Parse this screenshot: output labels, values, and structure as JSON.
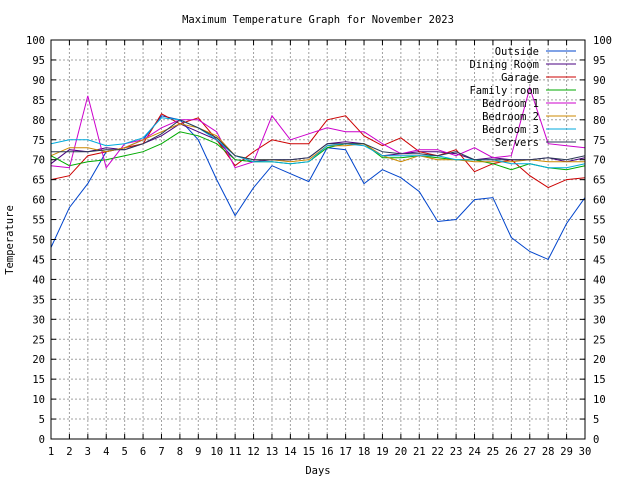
{
  "chart_data": {
    "type": "line",
    "title": "Maximum Temperature Graph for November 2023",
    "xlabel": "Days",
    "ylabel": "Temperature",
    "x": [
      1,
      2,
      3,
      4,
      5,
      6,
      7,
      8,
      9,
      10,
      11,
      12,
      13,
      14,
      15,
      16,
      17,
      18,
      19,
      20,
      21,
      22,
      23,
      24,
      25,
      26,
      27,
      28,
      29,
      30
    ],
    "xlim": [
      1,
      30
    ],
    "ylim": [
      0,
      100
    ],
    "y_ticks": [
      0,
      5,
      10,
      15,
      20,
      25,
      30,
      35,
      40,
      45,
      50,
      55,
      60,
      65,
      70,
      75,
      80,
      85,
      90,
      95,
      100
    ],
    "grid": true,
    "legend_position": "top-right",
    "series": [
      {
        "name": "Outside",
        "color": "#0044cc",
        "values": [
          48,
          58,
          64,
          72,
          73,
          75,
          81,
          80,
          75,
          65,
          56,
          63,
          68.5,
          66.5,
          64.5,
          73,
          72.5,
          64,
          67.5,
          65.5,
          62,
          54.5,
          55,
          60,
          60.5,
          50.5,
          47,
          45,
          54,
          60.5
        ]
      },
      {
        "name": "Dining Room",
        "color": "#4a0080",
        "values": [
          69,
          72.5,
          72,
          73,
          72.5,
          74,
          76,
          79,
          77,
          75,
          70,
          69.5,
          70,
          70,
          70.5,
          74,
          74.5,
          74,
          71,
          71.5,
          72,
          72,
          71.5,
          70,
          70.5,
          70,
          70,
          70.5,
          69.5,
          70.5
        ]
      },
      {
        "name": "Garage",
        "color": "#cc0000",
        "values": [
          65,
          66,
          71,
          72,
          73,
          74,
          81.5,
          79,
          80.5,
          75,
          68.5,
          72,
          75,
          74,
          74,
          80,
          81,
          76,
          73.5,
          75.5,
          72,
          71,
          72.5,
          67,
          69,
          70,
          66,
          63,
          65,
          65.5
        ]
      },
      {
        "name": "Family room",
        "color": "#00aa00",
        "values": [
          71,
          68.5,
          69.5,
          70,
          71,
          72,
          74,
          77,
          76,
          74,
          70,
          69.5,
          69.5,
          69,
          69.5,
          73,
          74,
          74,
          70.5,
          70.5,
          71,
          70.5,
          70,
          70,
          69,
          67.5,
          69,
          68,
          67.5,
          68.5
        ]
      },
      {
        "name": "Bedroom 1",
        "color": "#cc00cc",
        "values": [
          68.5,
          68,
          86,
          68,
          74,
          75,
          78,
          80,
          80,
          77,
          68,
          69.5,
          81,
          75,
          76.5,
          78,
          77,
          77,
          74,
          71.5,
          72.5,
          72.5,
          71,
          73,
          70.5,
          71,
          88,
          74,
          73.5,
          73
        ]
      },
      {
        "name": "Bedroom 2",
        "color": "#cc8800",
        "values": [
          71,
          73,
          73,
          72,
          73,
          75,
          77,
          79,
          78,
          76,
          71,
          70,
          70,
          69.5,
          70,
          73.5,
          73.5,
          74,
          71,
          69.5,
          71,
          70,
          70,
          69.5,
          69.5,
          69.5,
          70,
          69.5,
          69.5,
          69.5
        ]
      },
      {
        "name": "Bedroom 3",
        "color": "#00aadd",
        "values": [
          74,
          75,
          75,
          73.5,
          74,
          75.5,
          80.5,
          80,
          78,
          75,
          71,
          69.5,
          69.5,
          69,
          69.5,
          73.5,
          74,
          73.5,
          71,
          71,
          71,
          71,
          70,
          70,
          70,
          69,
          69,
          68,
          68,
          69
        ]
      },
      {
        "name": "Servers",
        "color": "#2a3a55",
        "values": [
          72,
          72,
          72,
          72.5,
          72.5,
          74,
          76.5,
          80,
          78,
          75.5,
          71,
          70,
          70,
          70,
          70.5,
          74,
          74,
          74,
          72,
          71.5,
          71.5,
          71,
          72,
          70,
          70,
          70,
          70,
          70.5,
          70,
          71
        ]
      }
    ]
  }
}
